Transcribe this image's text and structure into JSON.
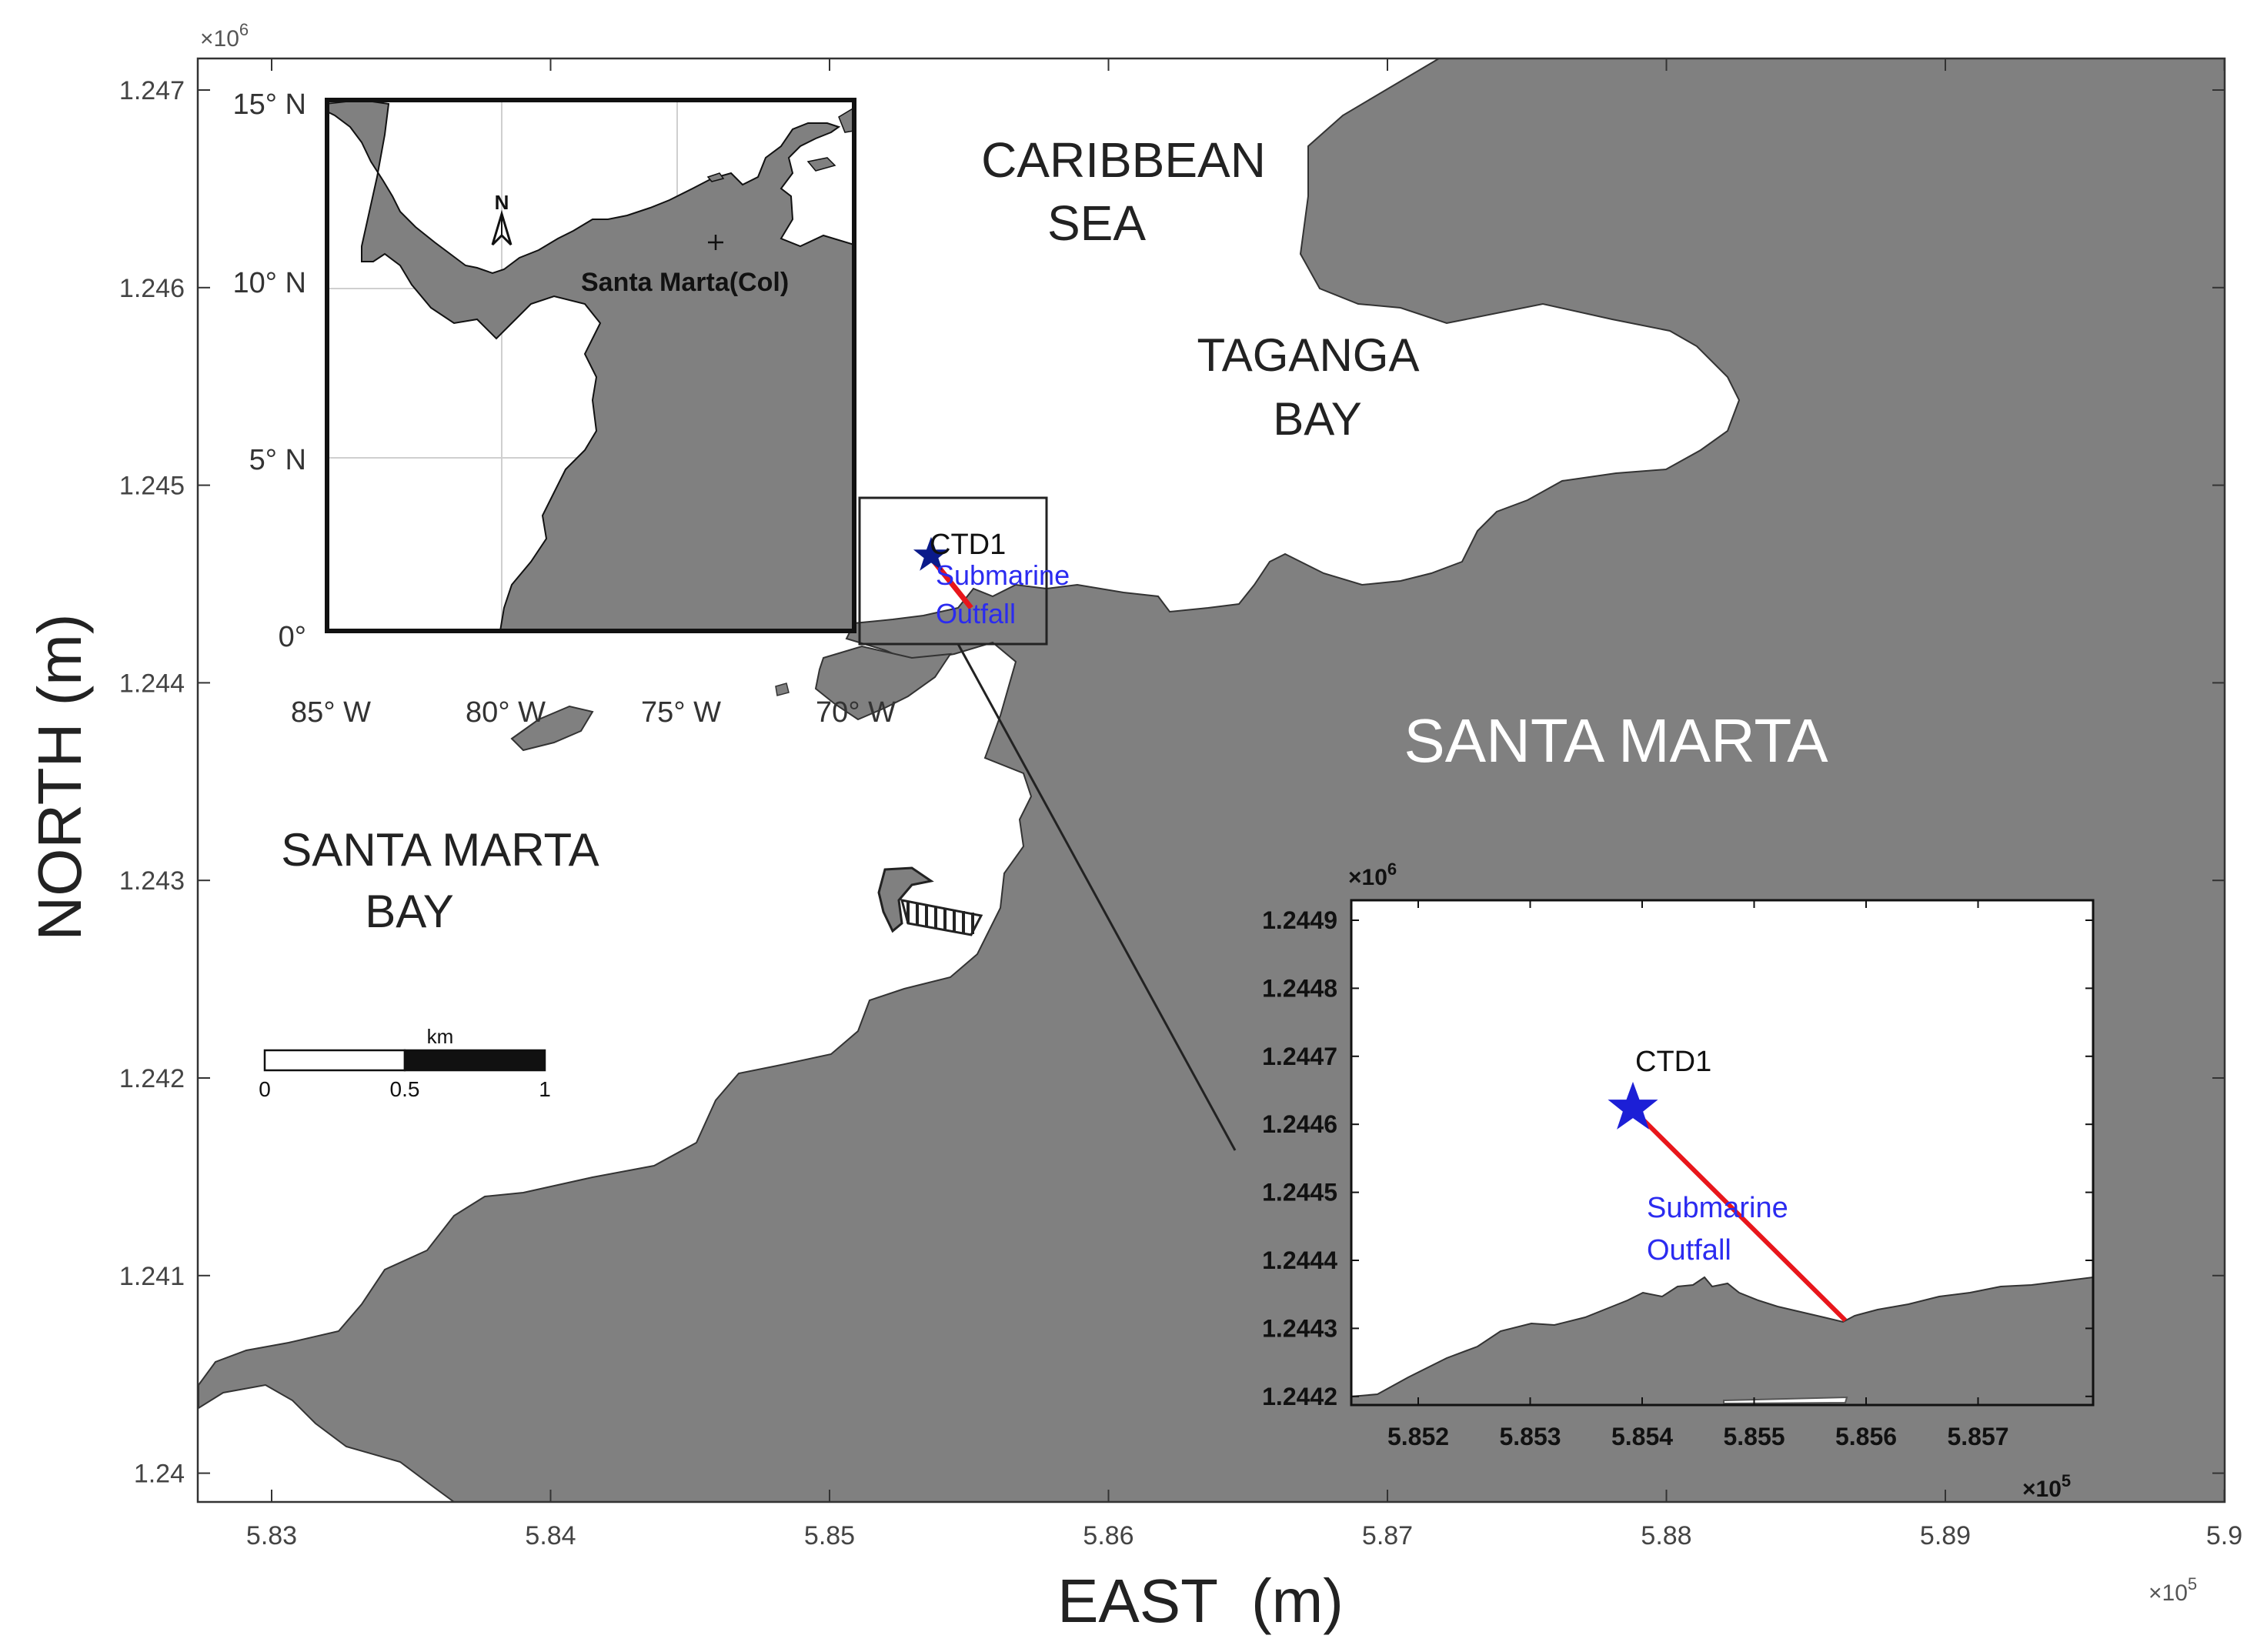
{
  "main_map": {
    "x_axis_label": "EAST  (m)",
    "y_axis_label": "NORTH (m)",
    "x_exponent": "×10",
    "x_exponent_power": "5",
    "y_exponent": "×10",
    "y_exponent_power": "6",
    "x_ticks": [
      "5.83",
      "5.84",
      "5.85",
      "5.86",
      "5.87",
      "5.88",
      "5.89",
      "5.9"
    ],
    "y_ticks": [
      "1.247",
      "1.246",
      "1.245",
      "1.244",
      "1.243",
      "1.242",
      "1.241",
      "1.24"
    ],
    "labels": {
      "sea_line1": "CARIBBEAN",
      "sea_line2": "SEA",
      "taganga_line1": "TAGANGA",
      "taganga_line2": "BAY",
      "city": "SANTA MARTA",
      "bay_line1": "SANTA MARTA",
      "bay_line2": "BAY",
      "station": "CTD1",
      "outfall_line1": "Submarine",
      "outfall_line2": "Outfall"
    },
    "scale_bar": {
      "unit": "km",
      "ticks": [
        "0",
        "0.5",
        "1"
      ]
    },
    "colors": {
      "land": "#808080",
      "sea": "#ffffff",
      "outfall": "#e8161b",
      "station_marker": "#1c1fd6",
      "outfall_label": "#2b2bf0"
    }
  },
  "inset_location": {
    "lat_ticks": [
      "15° N",
      "10° N",
      "5° N",
      "0°"
    ],
    "lon_ticks": [
      "85° W",
      "80° W",
      "75° W",
      "70° W"
    ],
    "place_label": "Santa Marta(Col)",
    "north_arrow_label": "N"
  },
  "inset_zoom": {
    "x_exponent": "×10",
    "x_exponent_power": "5",
    "y_exponent": "×10",
    "y_exponent_power": "6",
    "x_ticks": [
      "5.852",
      "5.853",
      "5.854",
      "5.855",
      "5.856",
      "5.857"
    ],
    "y_ticks": [
      "1.2449",
      "1.2448",
      "1.2447",
      "1.2446",
      "1.2445",
      "1.2444",
      "1.2443",
      "1.2442"
    ],
    "station": "CTD1",
    "outfall_line1": "Submarine",
    "outfall_line2": "Outfall"
  }
}
